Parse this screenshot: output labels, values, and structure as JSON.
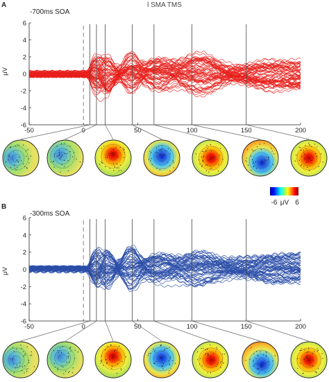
{
  "figure": {
    "title": "l SMA TMS",
    "colors": {
      "panel_a": "#e8201c",
      "panel_b": "#2a4ea8",
      "axis": "#222222",
      "event_line": "#555555"
    }
  },
  "colorbar": {
    "min_label": "-6",
    "unit_label": "μV",
    "max_label": "6",
    "colormap": "jet"
  },
  "chart_data": [
    {
      "type": "line",
      "panel": "A",
      "subtitle": "-700ms SOA",
      "ylabel": "μV",
      "xlim": [
        -50,
        200
      ],
      "ylim": [
        -6,
        6
      ],
      "x_ticks": [
        -50,
        0,
        50,
        100,
        150,
        200
      ],
      "y_ticks": [
        6,
        4,
        2,
        0,
        -2,
        -4,
        -6
      ],
      "grid": false,
      "n_channels": 60,
      "dashed_marker_ms": 0,
      "event_lines_ms": [
        6,
        12,
        20,
        45,
        65,
        100,
        150
      ],
      "topoplot_times_ms": [
        6,
        12,
        20,
        45,
        65,
        100,
        150
      ],
      "series_color": "#e8201c"
    },
    {
      "type": "line",
      "panel": "B",
      "subtitle": "-300ms SOA",
      "ylabel": "μV",
      "xlim": [
        -50,
        200
      ],
      "ylim": [
        -6,
        6
      ],
      "x_ticks": [
        -50,
        0,
        50,
        100,
        150,
        200
      ],
      "y_ticks": [
        6,
        4,
        2,
        0,
        -2,
        -4,
        -6
      ],
      "grid": false,
      "n_channels": 60,
      "dashed_marker_ms": 0,
      "event_lines_ms": [
        6,
        12,
        20,
        45,
        65,
        100,
        150
      ],
      "topoplot_times_ms": [
        6,
        12,
        20,
        45,
        65,
        100,
        150
      ],
      "series_color": "#2a4ea8"
    }
  ]
}
